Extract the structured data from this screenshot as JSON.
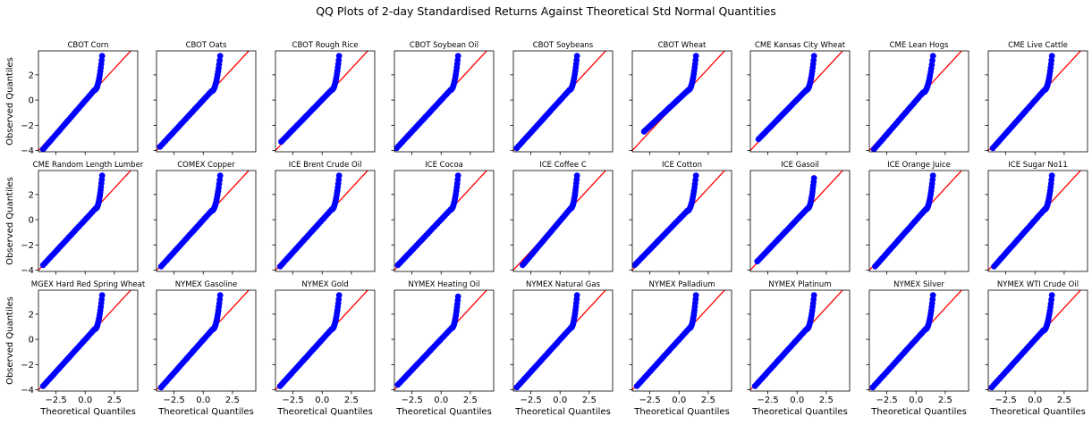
{
  "figure": {
    "title": "QQ Plots of 2-day Standardised Returns Against Theoretical Std Normal Quantities"
  },
  "chart_data": {
    "type": "scatter",
    "layout": {
      "rows": 3,
      "cols": 9,
      "sharex": true,
      "sharey": true
    },
    "xlabel": "Theoretical Quantiles",
    "ylabel": "Observed Quantiles",
    "xlim": [
      -4,
      4.5
    ],
    "ylim": [
      -4.1,
      3.9
    ],
    "xticks": [
      -2.5,
      0.0,
      2.5
    ],
    "xtick_labels": [
      "−2.5",
      "0.0",
      "2.5"
    ],
    "yticks": [
      -4,
      -2,
      0,
      2
    ],
    "ytick_labels": [
      "−4",
      "−2",
      "0",
      "2"
    ],
    "marker_color": "#0000ff",
    "reference_line": {
      "type": "y=x",
      "color": "#ff0000"
    },
    "panels": [
      {
        "title": "CBOT Corn",
        "x_min": -3.6,
        "y_min": -3.9,
        "x_bend": 0.8,
        "x_max": 1.45,
        "y_max": 3.5
      },
      {
        "title": "CBOT Oats",
        "x_min": -3.7,
        "y_min": -3.7,
        "x_bend": 0.7,
        "x_max": 1.45,
        "y_max": 3.5
      },
      {
        "title": "CBOT Rough Rice",
        "x_min": -3.5,
        "y_min": -3.3,
        "x_bend": 0.8,
        "x_max": 1.45,
        "y_max": 3.5
      },
      {
        "title": "CBOT Soybean Oil",
        "x_min": -3.8,
        "y_min": -3.8,
        "x_bend": 0.8,
        "x_max": 1.45,
        "y_max": 3.5
      },
      {
        "title": "CBOT Soybeans",
        "x_min": -3.7,
        "y_min": -3.8,
        "x_bend": 0.8,
        "x_max": 1.45,
        "y_max": 3.5
      },
      {
        "title": "CBOT Wheat",
        "x_min": -3.0,
        "y_min": -2.5,
        "x_bend": 0.8,
        "x_max": 1.45,
        "y_max": 3.5
      },
      {
        "title": "CME Kansas City Wheat",
        "x_min": -3.3,
        "y_min": -3.1,
        "x_bend": 0.8,
        "x_max": 1.45,
        "y_max": 3.5
      },
      {
        "title": "CME Lean Hogs",
        "x_min": -3.6,
        "y_min": -3.9,
        "x_bend": 0.6,
        "x_max": 1.45,
        "y_max": 3.5
      },
      {
        "title": "CME Live Cattle",
        "x_min": -3.6,
        "y_min": -3.8,
        "x_bend": 0.8,
        "x_max": 1.45,
        "y_max": 3.5
      },
      {
        "title": "CME Random Length Lumber",
        "x_min": -3.6,
        "y_min": -3.6,
        "x_bend": 0.9,
        "x_max": 1.45,
        "y_max": 3.5
      },
      {
        "title": "COMEX Copper",
        "x_min": -3.6,
        "y_min": -3.7,
        "x_bend": 0.7,
        "x_max": 1.45,
        "y_max": 3.5
      },
      {
        "title": "ICE Brent Crude Oil",
        "x_min": -3.6,
        "y_min": -3.7,
        "x_bend": 0.8,
        "x_max": 1.45,
        "y_max": 3.5
      },
      {
        "title": "ICE Cocoa",
        "x_min": -3.7,
        "y_min": -3.6,
        "x_bend": 0.8,
        "x_max": 1.45,
        "y_max": 3.5
      },
      {
        "title": "ICE Coffee C",
        "x_min": -3.2,
        "y_min": -3.6,
        "x_bend": 0.9,
        "x_max": 1.45,
        "y_max": 3.5
      },
      {
        "title": "ICE Cotton",
        "x_min": -3.8,
        "y_min": -3.6,
        "x_bend": 0.7,
        "x_max": 1.45,
        "y_max": 3.5
      },
      {
        "title": "ICE Gasoil",
        "x_min": -3.4,
        "y_min": -3.3,
        "x_bend": 0.9,
        "x_max": 1.45,
        "y_max": 3.3
      },
      {
        "title": "ICE Orange Juice",
        "x_min": -3.5,
        "y_min": -3.7,
        "x_bend": 0.8,
        "x_max": 1.45,
        "y_max": 3.5
      },
      {
        "title": "ICE Sugar No11",
        "x_min": -3.5,
        "y_min": -3.7,
        "x_bend": 0.8,
        "x_max": 1.45,
        "y_max": 3.5
      },
      {
        "title": "MGEX Hard Red Spring Wheat",
        "x_min": -3.6,
        "y_min": -3.7,
        "x_bend": 0.8,
        "x_max": 1.45,
        "y_max": 3.5
      },
      {
        "title": "NYMEX Gasoline",
        "x_min": -3.6,
        "y_min": -3.8,
        "x_bend": 0.8,
        "x_max": 1.45,
        "y_max": 3.5
      },
      {
        "title": "NYMEX Gold",
        "x_min": -3.6,
        "y_min": -3.7,
        "x_bend": 0.8,
        "x_max": 1.45,
        "y_max": 3.5
      },
      {
        "title": "NYMEX Heating Oil",
        "x_min": -3.7,
        "y_min": -3.6,
        "x_bend": 0.9,
        "x_max": 1.45,
        "y_max": 3.4
      },
      {
        "title": "NYMEX Natural Gas",
        "x_min": -3.7,
        "y_min": -3.8,
        "x_bend": 0.9,
        "x_max": 1.45,
        "y_max": 3.5
      },
      {
        "title": "NYMEX Palladium",
        "x_min": -3.6,
        "y_min": -3.7,
        "x_bend": 0.9,
        "x_max": 1.45,
        "y_max": 3.5
      },
      {
        "title": "NYMEX Platinum",
        "x_min": -3.6,
        "y_min": -3.7,
        "x_bend": 0.8,
        "x_max": 1.45,
        "y_max": 3.5
      },
      {
        "title": "NYMEX Silver",
        "x_min": -3.7,
        "y_min": -3.8,
        "x_bend": 0.8,
        "x_max": 1.45,
        "y_max": 3.5
      },
      {
        "title": "NYMEX WTI Crude Oil",
        "x_min": -3.7,
        "y_min": -3.8,
        "x_bend": 0.7,
        "x_max": 1.45,
        "y_max": 3.5
      }
    ]
  }
}
